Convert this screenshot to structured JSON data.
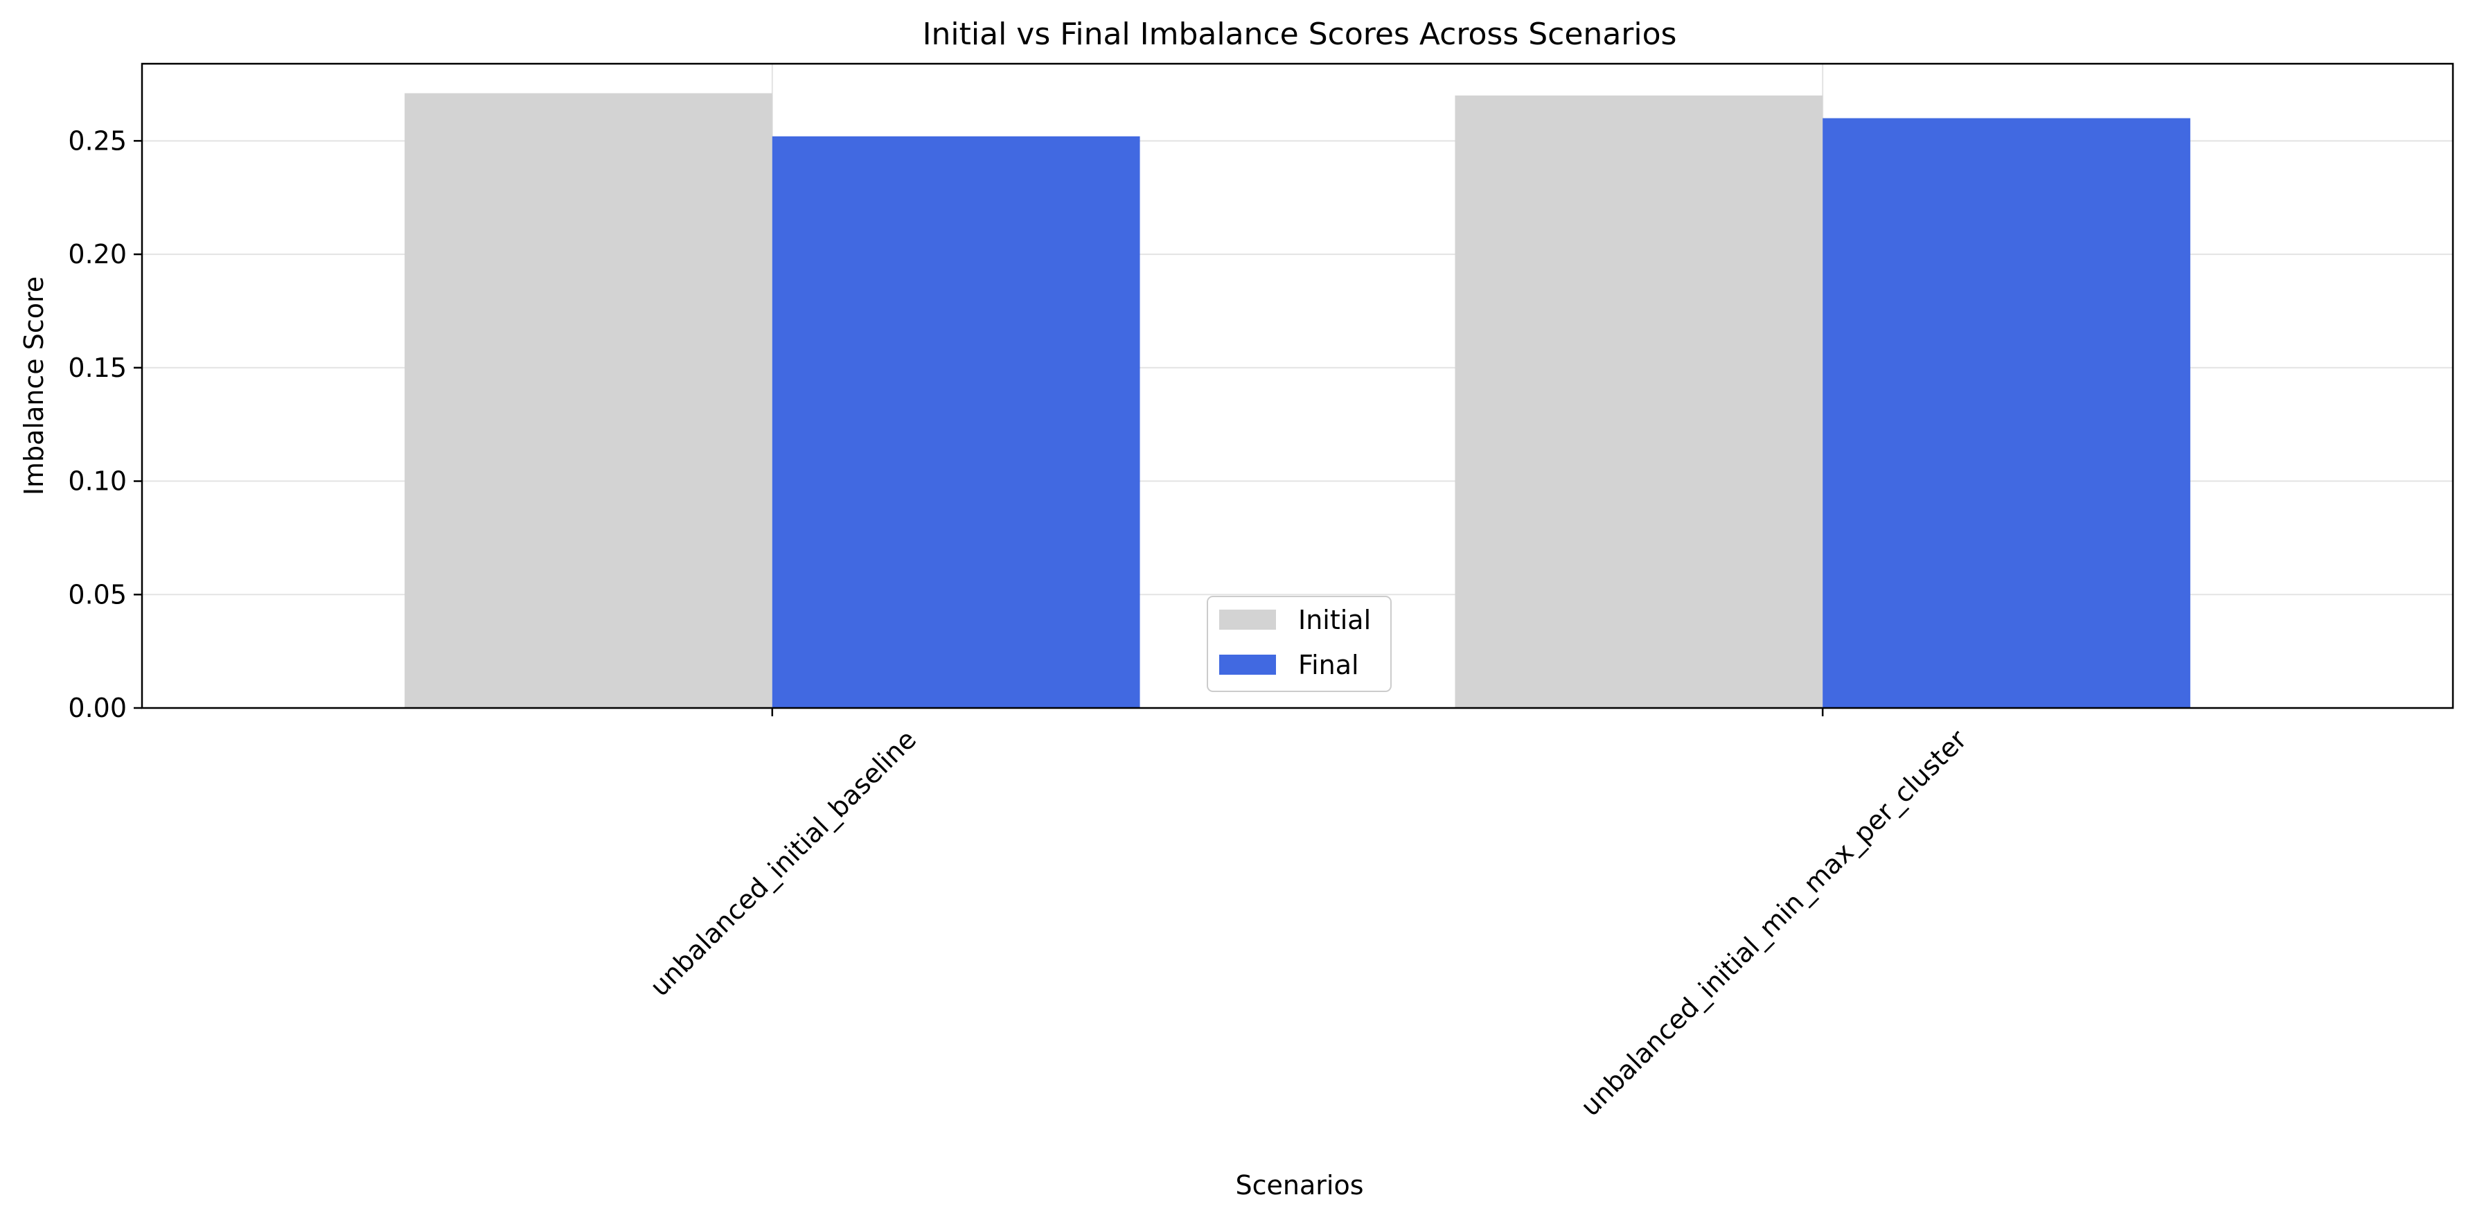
{
  "chart_data": {
    "type": "bar",
    "title": "Initial vs Final Imbalance Scores Across Scenarios",
    "xlabel": "Scenarios",
    "ylabel": "Imbalance Score",
    "categories": [
      "unbalanced_initial_baseline",
      "unbalanced_initial_min_max_per_cluster"
    ],
    "series": [
      {
        "name": "Initial",
        "values": [
          0.271,
          0.27
        ],
        "color": "#d3d3d3"
      },
      {
        "name": "Final",
        "values": [
          0.252,
          0.26
        ],
        "color": "#4169e1"
      }
    ],
    "ylim": [
      0,
      0.284
    ],
    "yticks": [
      "0.00",
      "0.05",
      "0.10",
      "0.15",
      "0.20",
      "0.25"
    ],
    "grid": true,
    "legend_position": "bottom-center"
  }
}
